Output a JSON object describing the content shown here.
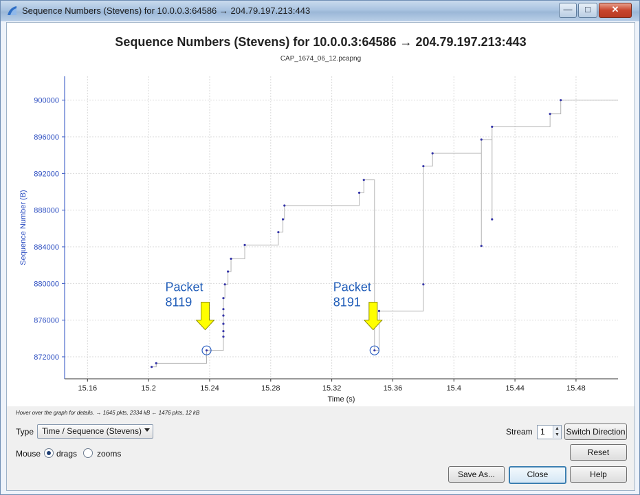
{
  "window": {
    "title": "Sequence Numbers (Stevens) for 10.0.0.3:64586 → 204.79.197.213:443",
    "minimize_glyph": "—",
    "maximize_glyph": "□",
    "close_glyph": "✕"
  },
  "chart_data": {
    "type": "scatter",
    "title": "Sequence Numbers (Stevens) for 10.0.0.3:64586 → 204.79.197.213:443",
    "subtitle": "CAP_1674_06_12.pcapng",
    "xlabel": "Time (s)",
    "ylabel": "Sequence Number (B)",
    "xlim": [
      15.145,
      15.5075
    ],
    "ylim": [
      869600,
      902600
    ],
    "x_ticks": [
      "15.16",
      "15.2",
      "15.24",
      "15.28",
      "15.32",
      "15.36",
      "15.4",
      "15.44",
      "15.48"
    ],
    "y_ticks": [
      "872000",
      "876000",
      "880000",
      "884000",
      "888000",
      "892000",
      "896000",
      "900000"
    ],
    "series": [
      {
        "points": [
          [
            15.202,
            870900
          ],
          [
            15.205,
            871300
          ],
          [
            15.238,
            872700
          ],
          [
            15.249,
            874200
          ],
          [
            15.249,
            874800
          ],
          [
            15.249,
            875600
          ],
          [
            15.249,
            876500
          ],
          [
            15.249,
            877200
          ],
          [
            15.249,
            878400
          ],
          [
            15.25,
            879900
          ],
          [
            15.252,
            881300
          ],
          [
            15.254,
            882700
          ],
          [
            15.263,
            884200
          ],
          [
            15.285,
            885600
          ],
          [
            15.288,
            887000
          ],
          [
            15.289,
            888500
          ],
          [
            15.338,
            889900
          ],
          [
            15.341,
            891300
          ],
          [
            15.348,
            872700
          ],
          [
            15.351,
            877000
          ],
          [
            15.38,
            879900
          ],
          [
            15.38,
            892800
          ],
          [
            15.386,
            894200
          ],
          [
            15.418,
            884100
          ],
          [
            15.418,
            895700
          ],
          [
            15.425,
            887000
          ],
          [
            15.425,
            897100
          ],
          [
            15.463,
            898500
          ],
          [
            15.47,
            900000
          ]
        ]
      }
    ],
    "annotations": [
      {
        "label_line1": "Packet",
        "label_line2": "8119",
        "x": 15.238,
        "y": 872700
      },
      {
        "label_line1": "Packet",
        "label_line2": "8191",
        "x": 15.348,
        "y": 872700
      }
    ],
    "grid": true,
    "colors": {
      "points": "#3535a8",
      "step": "#b3b3b3",
      "axis_text": "#2a4cc0",
      "arrow": "#ffff00",
      "callout": "#1f5cb8"
    }
  },
  "hint": "Hover over the graph for details. → 1645 pkts, 2334 kB ← 1476 pkts, 12 kB",
  "controls": {
    "type_label": "Type",
    "type_value": "Time / Sequence (Stevens)",
    "mouse_label": "Mouse",
    "drags_label": "drags",
    "zooms_label": "zooms",
    "mouse_mode": "drags",
    "stream_label": "Stream",
    "stream_value": "1",
    "switch_direction": "Switch Direction",
    "reset": "Reset",
    "save_as": "Save As...",
    "close": "Close",
    "help": "Help"
  }
}
